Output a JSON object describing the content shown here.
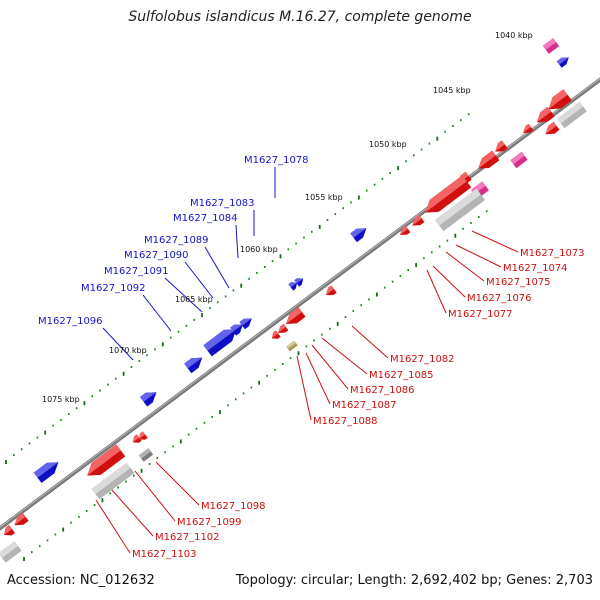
{
  "title": "Sulfolobus islandicus M.16.27, complete genome",
  "footer": {
    "accession": "Accession: NC_012632",
    "summary": "Topology: circular; Length: 2,692,402 bp; Genes: 2,703"
  },
  "colors": {
    "forward_gene": "#1010e0",
    "reverse_gene": "#ee1111",
    "reverse_gene_alt": "#ee3399",
    "rna_or_pseudo": "#c8c8c8",
    "other_feature": "#b8aa60",
    "backbone": "#808080",
    "tick_minor": "#1a8a1a",
    "tick_major": "#1a6a1a",
    "label_forward": "#1515c8",
    "label_reverse": "#cc1010"
  },
  "kbp_labels": [
    "1040 kbp",
    "1045 kbp",
    "1050 kbp",
    "1055 kbp",
    "1060 kbp",
    "1065 kbp",
    "1070 kbp",
    "1075 kbp"
  ],
  "forward_labels": [
    "M1627_1078",
    "M1627_1083",
    "M1627_1084",
    "M1627_1089",
    "M1627_1090",
    "M1627_1091",
    "M1627_1092",
    "M1627_1096"
  ],
  "reverse_labels": [
    "M1627_1073",
    "M1627_1074",
    "M1627_1075",
    "M1627_1076",
    "M1627_1077",
    "M1627_1082",
    "M1627_1085",
    "M1627_1086",
    "M1627_1087",
    "M1627_1088",
    "M1627_1098",
    "M1627_1099",
    "M1627_1102",
    "M1627_1103"
  ]
}
